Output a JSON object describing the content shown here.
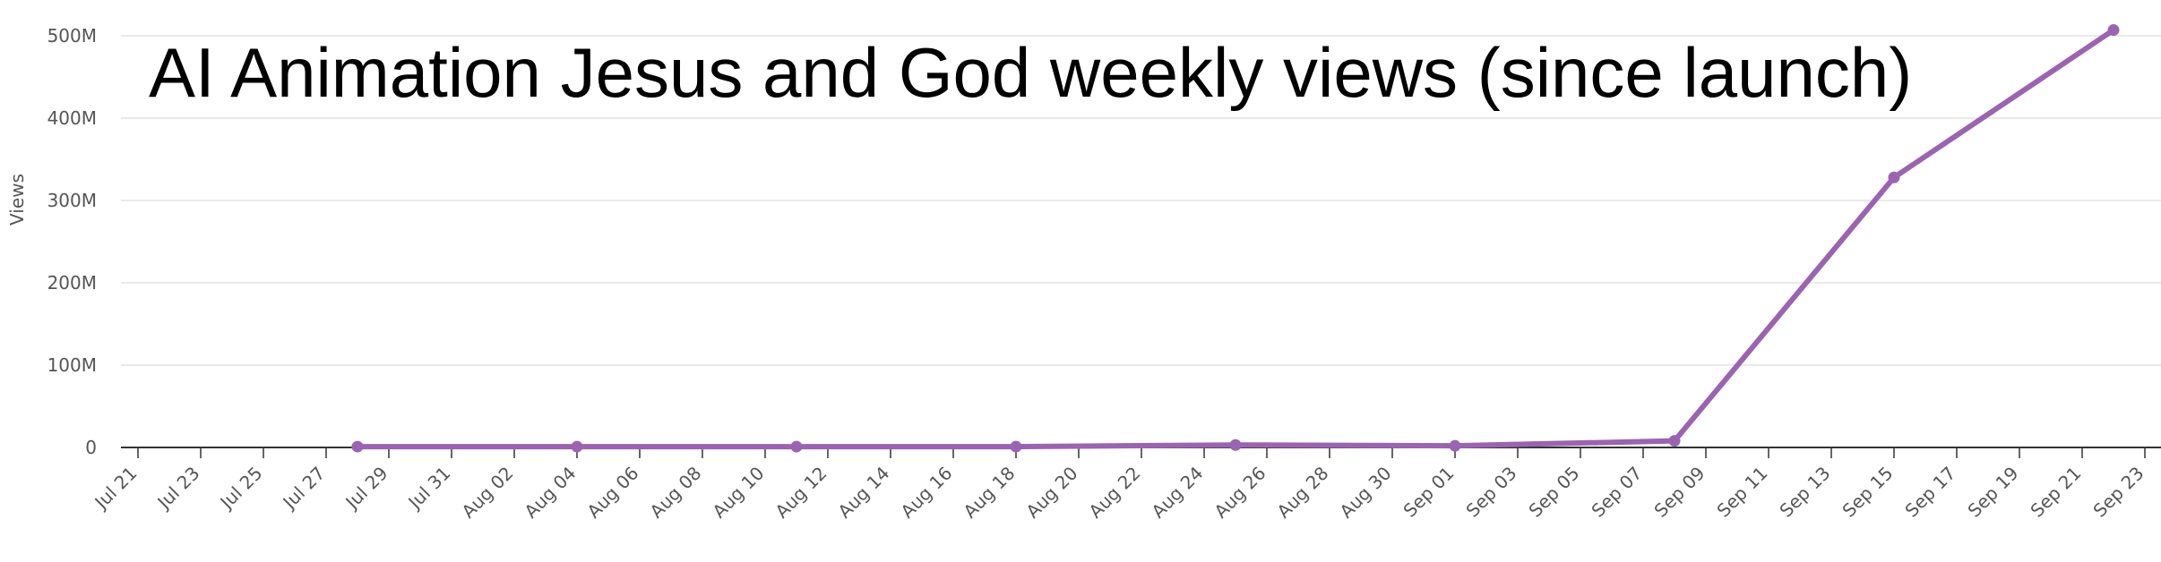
{
  "chart_data": {
    "type": "line",
    "title": "AI Animation Jesus and God weekly views (since launch)",
    "y_label": "Views",
    "x": [
      "Jul 28",
      "Aug 04",
      "Aug 11",
      "Aug 18",
      "Aug 25",
      "Sep 01",
      "Sep 08",
      "Sep 15",
      "Sep 22"
    ],
    "series": [
      {
        "name": "Views",
        "color": "#9b64b0",
        "values": [
          1000000,
          1000000,
          1000000,
          1000000,
          3000000,
          2000000,
          8000000,
          328000000,
          507000000
        ]
      }
    ],
    "xlim": [
      "Jul 21",
      "Sep 23"
    ],
    "xticks": [
      "Jul 21",
      "Jul 23",
      "Jul 25",
      "Jul 27",
      "Jul 29",
      "Jul 31",
      "Aug 02",
      "Aug 04",
      "Aug 06",
      "Aug 08",
      "Aug 10",
      "Aug 12",
      "Aug 14",
      "Aug 16",
      "Aug 18",
      "Aug 20",
      "Aug 22",
      "Aug 24",
      "Aug 26",
      "Aug 28",
      "Aug 30",
      "Sep 01",
      "Sep 03",
      "Sep 05",
      "Sep 07",
      "Sep 09",
      "Sep 11",
      "Sep 13",
      "Sep 15",
      "Sep 17",
      "Sep 19",
      "Sep 21",
      "Sep 23"
    ],
    "ylim": [
      0,
      500000000
    ],
    "yticks": [
      0,
      {
        "value": 100000000,
        "label": "100M"
      },
      {
        "value": 200000000,
        "label": "200M"
      },
      {
        "value": 300000000,
        "label": "300M"
      },
      {
        "value": 400000000,
        "label": "400M"
      },
      {
        "value": 500000000,
        "label": "500M"
      }
    ],
    "grid": true
  }
}
